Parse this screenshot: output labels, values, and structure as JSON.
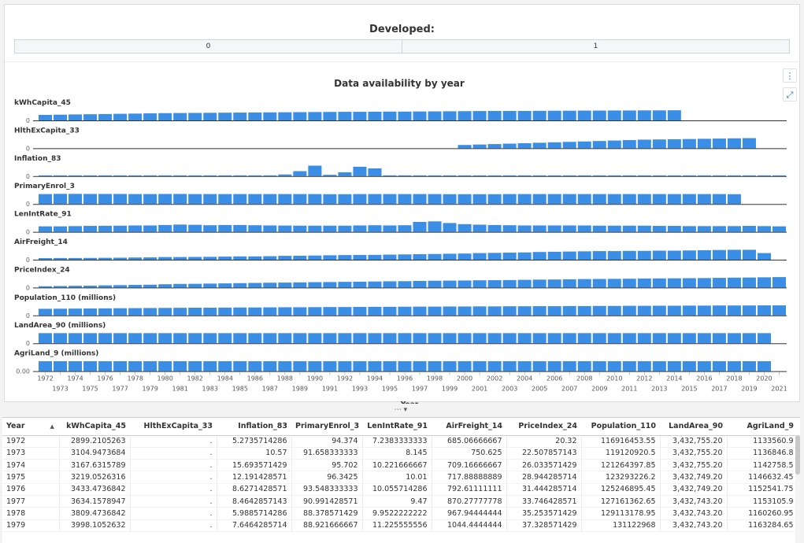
{
  "developed": {
    "title": "Developed:",
    "options": [
      "0",
      "1"
    ]
  },
  "chart_toolbar": {
    "menu_icon": "more-vertical-icon",
    "expand_icon": "expand-icon"
  },
  "chart_data": {
    "type": "bar",
    "title": "Data availability by year",
    "xlabel": "Year",
    "years": [
      1972,
      1973,
      1974,
      1975,
      1976,
      1977,
      1978,
      1979,
      1980,
      1981,
      1982,
      1983,
      1984,
      1985,
      1986,
      1987,
      1988,
      1989,
      1990,
      1991,
      1992,
      1993,
      1994,
      1995,
      1996,
      1997,
      1998,
      1999,
      2000,
      2001,
      2002,
      2003,
      2004,
      2005,
      2006,
      2007,
      2008,
      2009,
      2010,
      2011,
      2012,
      2013,
      2014,
      2015,
      2016,
      2017,
      2018,
      2019,
      2020,
      2021
    ],
    "top_ticks": [
      1972,
      1974,
      1976,
      1978,
      1980,
      1982,
      1984,
      1986,
      1988,
      1990,
      1992,
      1994,
      1996,
      1998,
      2000,
      2002,
      2004,
      2006,
      2008,
      2010,
      2012,
      2014,
      2016,
      2018,
      2020
    ],
    "bottom_ticks": [
      1973,
      1975,
      1977,
      1979,
      1981,
      1983,
      1985,
      1987,
      1989,
      1991,
      1993,
      1995,
      1997,
      1999,
      2001,
      2003,
      2005,
      2007,
      2009,
      2011,
      2013,
      2015,
      2017,
      2019,
      2021
    ],
    "bar_color": "#3a8ee6",
    "series": [
      {
        "name": "kWhCapita_45",
        "zero_label": "0",
        "values": [
          0.5,
          0.52,
          0.54,
          0.56,
          0.58,
          0.6,
          0.62,
          0.64,
          0.66,
          0.67,
          0.68,
          0.69,
          0.7,
          0.71,
          0.72,
          0.73,
          0.74,
          0.75,
          0.76,
          0.77,
          0.78,
          0.78,
          0.79,
          0.8,
          0.8,
          0.81,
          0.82,
          0.83,
          0.84,
          0.85,
          0.86,
          0.86,
          0.86,
          0.87,
          0.88,
          0.88,
          0.89,
          0.89,
          0.9,
          0.9,
          0.91,
          0.91,
          0.92,
          null,
          null,
          null,
          null,
          null,
          null,
          null
        ]
      },
      {
        "name": "HlthExCapita_33",
        "zero_label": "0",
        "values": [
          null,
          null,
          null,
          null,
          null,
          null,
          null,
          null,
          null,
          null,
          null,
          null,
          null,
          null,
          null,
          null,
          null,
          null,
          null,
          null,
          null,
          null,
          null,
          null,
          null,
          null,
          null,
          null,
          0.3,
          0.34,
          0.38,
          0.42,
          0.46,
          0.5,
          0.54,
          0.58,
          0.62,
          0.66,
          0.7,
          0.74,
          0.78,
          0.8,
          0.82,
          0.84,
          0.86,
          0.88,
          0.9,
          0.92,
          null,
          null
        ]
      },
      {
        "name": "Inflation_83",
        "zero_label": "0",
        "values": [
          0.04,
          0.04,
          0.04,
          0.04,
          0.04,
          0.04,
          0.04,
          0.04,
          0.04,
          0.04,
          0.04,
          0.04,
          0.04,
          0.04,
          0.04,
          0.04,
          0.15,
          0.45,
          0.95,
          0.12,
          0.35,
          0.85,
          0.7,
          0.04,
          0.04,
          0.04,
          0.04,
          0.04,
          0.04,
          0.04,
          0.04,
          0.04,
          0.04,
          0.04,
          0.04,
          0.04,
          0.04,
          0.04,
          0.04,
          0.04,
          0.04,
          0.04,
          0.04,
          0.04,
          0.04,
          0.04,
          0.04,
          0.04,
          0.04,
          0.04
        ]
      },
      {
        "name": "PrimaryEnrol_3",
        "zero_label": "0",
        "values": [
          0.9,
          0.92,
          0.92,
          0.91,
          0.91,
          0.91,
          0.9,
          0.9,
          0.91,
          0.91,
          0.9,
          0.9,
          0.9,
          0.9,
          0.9,
          0.9,
          0.9,
          0.9,
          0.9,
          0.89,
          0.89,
          0.9,
          0.9,
          0.9,
          0.9,
          0.9,
          0.9,
          0.89,
          0.89,
          0.89,
          0.89,
          0.9,
          0.9,
          0.9,
          0.9,
          0.9,
          0.9,
          0.9,
          0.9,
          0.9,
          0.9,
          0.9,
          0.9,
          0.9,
          0.9,
          0.9,
          0.89,
          null,
          null,
          null
        ]
      },
      {
        "name": "LenIntRate_91",
        "zero_label": "0",
        "values": [
          0.5,
          0.5,
          0.52,
          0.54,
          0.55,
          0.56,
          0.58,
          0.58,
          0.62,
          0.66,
          0.64,
          0.6,
          0.62,
          0.62,
          0.6,
          0.58,
          0.57,
          0.56,
          0.56,
          0.56,
          0.56,
          0.58,
          0.6,
          0.58,
          0.6,
          0.9,
          0.95,
          0.8,
          0.7,
          0.65,
          0.62,
          0.6,
          0.58,
          0.58,
          0.58,
          0.58,
          0.58,
          0.56,
          0.56,
          0.56,
          0.56,
          0.54,
          0.54,
          0.52,
          0.52,
          0.52,
          0.52,
          0.54,
          0.52,
          0.5
        ]
      },
      {
        "name": "AirFreight_14",
        "zero_label": "0",
        "values": [
          0.14,
          0.15,
          0.15,
          0.16,
          0.17,
          0.18,
          0.2,
          0.21,
          0.24,
          0.24,
          0.25,
          0.26,
          0.28,
          0.3,
          0.3,
          0.32,
          0.35,
          0.36,
          0.38,
          0.4,
          0.42,
          0.43,
          0.44,
          0.46,
          0.48,
          0.5,
          0.52,
          0.54,
          0.56,
          0.6,
          0.62,
          0.64,
          0.66,
          0.7,
          0.72,
          0.74,
          0.76,
          0.78,
          0.78,
          0.8,
          0.8,
          0.82,
          0.82,
          0.84,
          0.86,
          0.88,
          0.9,
          0.9,
          0.6,
          null
        ]
      },
      {
        "name": "PriceIndex_24",
        "zero_label": "0",
        "values": [
          0.12,
          0.14,
          0.16,
          0.17,
          0.2,
          0.22,
          0.24,
          0.26,
          0.3,
          0.33,
          0.34,
          0.36,
          0.38,
          0.4,
          0.42,
          0.44,
          0.45,
          0.47,
          0.49,
          0.5,
          0.52,
          0.53,
          0.55,
          0.57,
          0.58,
          0.6,
          0.62,
          0.63,
          0.64,
          0.66,
          0.67,
          0.68,
          0.7,
          0.72,
          0.73,
          0.75,
          0.77,
          0.78,
          0.79,
          0.8,
          0.82,
          0.83,
          0.84,
          0.85,
          0.86,
          0.88,
          0.9,
          0.91,
          0.93,
          0.95
        ]
      },
      {
        "name": "Population_110 (millions)",
        "zero_label": "0",
        "values": [
          0.6,
          0.61,
          0.62,
          0.63,
          0.64,
          0.65,
          0.66,
          0.67,
          0.68,
          0.69,
          0.7,
          0.7,
          0.71,
          0.72,
          0.72,
          0.73,
          0.74,
          0.74,
          0.75,
          0.76,
          0.76,
          0.77,
          0.78,
          0.78,
          0.79,
          0.8,
          0.8,
          0.81,
          0.81,
          0.82,
          0.82,
          0.83,
          0.83,
          0.84,
          0.84,
          0.85,
          0.85,
          0.86,
          0.86,
          0.87,
          0.87,
          0.88,
          0.88,
          0.89,
          0.89,
          0.9,
          0.9,
          0.9,
          0.91,
          0.91
        ]
      },
      {
        "name": "LandArea_90 (millions)",
        "zero_label": "0",
        "values": [
          0.92,
          0.92,
          0.92,
          0.92,
          0.92,
          0.92,
          0.92,
          0.92,
          0.92,
          0.92,
          0.92,
          0.92,
          0.92,
          0.92,
          0.92,
          0.92,
          0.92,
          0.92,
          0.92,
          0.92,
          0.92,
          0.92,
          0.92,
          0.92,
          0.92,
          0.92,
          0.92,
          0.92,
          0.92,
          0.92,
          0.92,
          0.92,
          0.92,
          0.92,
          0.92,
          0.92,
          0.92,
          0.92,
          0.92,
          0.92,
          0.92,
          0.92,
          0.92,
          0.92,
          0.92,
          0.92,
          0.92,
          0.92,
          0.92,
          null
        ]
      },
      {
        "name": "AgriLand_9 (millions)",
        "zero_label": "0.00",
        "values": [
          0.9,
          0.9,
          0.9,
          0.9,
          0.9,
          0.9,
          0.9,
          0.9,
          0.9,
          0.9,
          0.9,
          0.9,
          0.9,
          0.9,
          0.9,
          0.9,
          0.9,
          0.9,
          0.9,
          0.9,
          0.9,
          0.9,
          0.9,
          0.9,
          0.9,
          0.9,
          0.9,
          0.9,
          0.9,
          0.9,
          0.9,
          0.9,
          0.9,
          0.9,
          0.9,
          0.9,
          0.9,
          0.9,
          0.9,
          0.9,
          0.9,
          0.9,
          0.9,
          0.9,
          0.9,
          0.9,
          0.9,
          0.9,
          0.9,
          null
        ]
      }
    ]
  },
  "splitter": "⋯ ▾",
  "table": {
    "sort_indicator": "▲",
    "columns": [
      "Year",
      "kWhCapita_45",
      "HlthExCapita_33",
      "Inflation_83",
      "PrimaryEnrol_3",
      "LenIntRate_91",
      "AirFreight_14",
      "PriceIndex_24",
      "Population_110",
      "LandArea_90",
      "AgriLand_9"
    ],
    "rows": [
      [
        "1972",
        "2899.2105263",
        ".",
        "5.2735714286",
        "94.374",
        "7.2383333333",
        "685.06666667",
        "20.32",
        "116916453.55",
        "3,432,755.20",
        "1133560.9"
      ],
      [
        "1973",
        "3104.9473684",
        ".",
        "10.57",
        "91.658333333",
        "8.145",
        "750.625",
        "22.507857143",
        "119120920.5",
        "3,432,755.20",
        "1136846.8"
      ],
      [
        "1974",
        "3167.6315789",
        ".",
        "15.693571429",
        "95.702",
        "10.221666667",
        "709.16666667",
        "26.033571429",
        "121264397.85",
        "3,432,755.20",
        "1142758.5"
      ],
      [
        "1975",
        "3219.0526316",
        ".",
        "12.191428571",
        "96.3425",
        "10.01",
        "717.88888889",
        "28.944285714",
        "123293226.2",
        "3,432,749.20",
        "1146632.45"
      ],
      [
        "1976",
        "3433.4736842",
        ".",
        "8.6271428571",
        "93.548333333",
        "10.055714286",
        "792.61111111",
        "31.444285714",
        "125246895.45",
        "3,432,749.20",
        "1152541.75"
      ],
      [
        "1977",
        "3634.1578947",
        ".",
        "8.4642857143",
        "90.991428571",
        "9.47",
        "870.27777778",
        "33.746428571",
        "127161362.65",
        "3,432,743.20",
        "1153105.9"
      ],
      [
        "1978",
        "3809.4736842",
        ".",
        "5.9885714286",
        "88.378571429",
        "9.9522222222",
        "967.94444444",
        "35.253571429",
        "129113178.95",
        "3,432,743.20",
        "1160260.95"
      ],
      [
        "1979",
        "3998.1052632",
        ".",
        "7.6464285714",
        "88.921666667",
        "11.225555556",
        "1044.4444444",
        "37.328571429",
        "131122968",
        "3,432,743.20",
        "1163284.65"
      ]
    ]
  }
}
